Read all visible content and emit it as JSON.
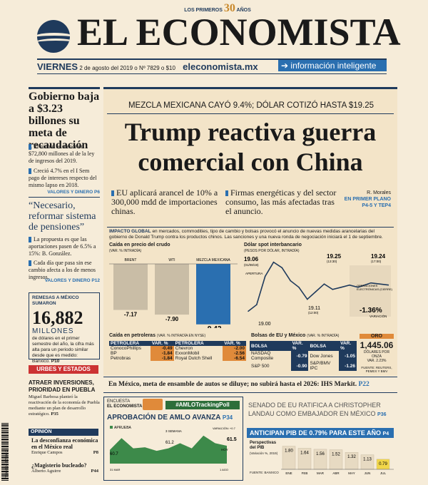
{
  "masthead": {
    "anniv_prefix": "LOS PRIMEROS",
    "anniv_num": "30",
    "anniv_suffix": "AÑOS",
    "title": "EL ECONOMISTA",
    "day": "VIERNES",
    "date": "2 de agosto del 2019",
    "issue": "Nº 7829",
    "price": "$10",
    "site": "eleconomista.mx",
    "tagline": "información inteligente"
  },
  "left": {
    "story1": {
      "headline": "Gobierno baja a $3.23 billones su meta de recaudación",
      "bullets": [
        "El monto es menor en $72,800 millones al de la ley de ingresos del 2019.",
        "Creció 4.7% en el I Sem pago de intereses respecto del mismo lapso en 2018."
      ],
      "section": "VALORES Y DINERO P6"
    },
    "story2": {
      "headline": "“Necesario, reformar sistema de pensiones”",
      "bullets": [
        "La propuesta es que las aportaciones pasen de 6.5% a 15%: B. González.",
        "Cada día que pasa sin ese cambio afecta a los de menos ingresos."
      ],
      "section": "VALORES Y DINERO P12"
    },
    "remesas": {
      "label": "REMESAS A MÉXICO SUMARON",
      "value": "16,882",
      "unit": "MILLONES",
      "text": "de dólares en el primer semestre del año, la cifra más alta para un periodo similar desde que es medido: Banxico.",
      "page": "P10"
    },
    "urbes": "URBES Y ESTADOS",
    "atraer": {
      "headline": "ATRAER INVERSIONES, PRIORIDAD EN PUEBLA",
      "text": "Miguel Barbosa planteó la reactivación de la economía de Puebla mediante un plan de desarrollo estratégico.",
      "page": "P35"
    },
    "opinion": {
      "label": "OPINIÓN",
      "item1": "La desconfianza económica en el México real",
      "author1": "Enrique Campos",
      "page1": "P8",
      "item2": "¿Magisterio bucleado?",
      "author2": "Alberto Aguirre",
      "page2": "P44"
    }
  },
  "main": {
    "kicker": "MEZCLA MEXICANA CAYÓ 9.4%; DÓLAR COTIZÓ HASTA $19.25",
    "headline1": "Trump reactiva guerra",
    "headline2": "comercial con China",
    "deck1": "EU aplicará arancel de 10% a 300,000 mdd de importaciones chinas.",
    "deck2": "Firmas energéticas y del sector consumo, las más afectadas tras el anuncio.",
    "byline": "R. Morales",
    "en_primer": "EN PRIMER PLANO",
    "pages": "P4-5 Y TEP4",
    "impacto_label": "IMPACTO GLOBAL",
    "impacto_text": "en mercados, commodities, tipo de cambio y bolsas provocó el anuncio de nuevas medidas arancelarias del gobierno de Donald Trump contra los productos chinos. Las sanciones y una nueva ronda de negociación iniciará el 1 de septiembre."
  },
  "crude": {
    "title": "Caída en precio del crudo",
    "sub": "(VAR. % INTRADÍA)",
    "labels": [
      "BRENT",
      "WTI",
      "MEZCLA MEXICANA"
    ],
    "values": [
      -7.17,
      -7.9,
      -9.42
    ],
    "value_labels": [
      "-7.17",
      "-7.90",
      "-9.42"
    ]
  },
  "peso": {
    "title": "Dólar spot interbancario",
    "sub": "(PESOS POR DÓLAR, INTRADÍA)",
    "points": [
      {
        "x": "18:00 (31/07/19) APERTURA",
        "y": 19.0
      },
      {
        "x": "19:06 (01/08/19)",
        "y": 19.06
      },
      {
        "x": "",
        "y": 19.32
      },
      {
        "x": "",
        "y": 19.45
      },
      {
        "x": "",
        "y": 19.4
      },
      {
        "x": "",
        "y": 19.28
      },
      {
        "x": "",
        "y": 19.22
      },
      {
        "x": "12:00",
        "y": 19.11
      },
      {
        "x": "",
        "y": 19.18
      },
      {
        "x": "13:30",
        "y": 19.25
      },
      {
        "x": "",
        "y": 19.2
      },
      {
        "x": "",
        "y": 19.22
      },
      {
        "x": "17:00",
        "y": 19.24
      }
    ],
    "label_open": "19.00",
    "label_open_time": "(31/07/19) APERTURA",
    "label_19_06": "19.06",
    "label_19_06_time": "(01/08/19)",
    "label_19_11": "19.11",
    "label_19_11_time": "(12:00)",
    "label_19_25": "19.25",
    "label_19_25_time": "(13:30)",
    "label_19_24": "19.24",
    "label_19_24_time": "(17:00)",
    "label_aper": "APERTURA",
    "label_ops": "OPERACIONES ELECTRÓNICAS (CIERRE)",
    "variation": "-1.36%",
    "variation_label": "VARIACIÓN"
  },
  "petroleras": {
    "title": "Caída en petroleras",
    "sub": "(VAR. % INTRADÍA EN NYSE)",
    "headers": [
      "PETROLERA",
      "VAR. %",
      "PETROLERA",
      "VAR. %"
    ],
    "rows": [
      [
        "ConocoPhillips",
        "-0.49",
        "Chevron",
        "-2.00"
      ],
      [
        "BP",
        "-1.84",
        "ExxonMobil",
        "-2.56"
      ],
      [
        "Petrobras",
        "-1.84",
        "Royal Dutch Shell",
        "-6.54"
      ]
    ]
  },
  "bolsas": {
    "title": "Bolsas de EU y México",
    "sub": "(VAR. % INTRADÍA)",
    "headers": [
      "BOLSA",
      "VAR. %",
      "BOLSA",
      "VAR. %"
    ],
    "rows": [
      [
        "NASDAQ Composite",
        "-0.79",
        "Dow Jones",
        "-1.05"
      ],
      [
        "S&P 500",
        "-0.90",
        "S&P/BMV IPC",
        "-1.26"
      ]
    ]
  },
  "oro": {
    "label": "ORO",
    "value": "1,445.06",
    "unit": "DÓLARES POR ONZA",
    "var": "VAR. 2.23%",
    "source": "FUENTE: REUTERS, PEMEX Y BMV"
  },
  "autos": {
    "text": "En México, meta de ensamble de autos se diluye; no subirá hasta el 2026: IHS Markit.",
    "page": "P22"
  },
  "amlo": {
    "encuesta": "ENCUESTA",
    "brand": "EL ECONOMISTA",
    "hashtag": "#AMLOTrackingPoll",
    "title": "APROBACIÓN DE AMLO AVANZA",
    "page": "P34",
    "legend": "APRUEBA",
    "points": [
      {
        "x": 0,
        "y": 60.7
      },
      {
        "x": 1,
        "y": 63
      },
      {
        "x": 2,
        "y": 61
      },
      {
        "x": 3,
        "y": 61.2
      },
      {
        "x": 4,
        "y": 60.5
      },
      {
        "x": 5,
        "y": 61
      },
      {
        "x": 6,
        "y": 62
      },
      {
        "x": 7,
        "y": 61
      },
      {
        "x": 8,
        "y": 63.5
      },
      {
        "x": 9,
        "y": 62
      },
      {
        "x": 10,
        "y": 61.5
      }
    ],
    "label_start": "60.7",
    "label_mid": "61.2",
    "label_sem": "3 SEMANA",
    "label_end": "61.5",
    "label_var": "VARIACIÓN: +0.7",
    "label_hoy": "HOY",
    "label_x_start": "31 MAR",
    "label_x_end": "1 AGO"
  },
  "landau": {
    "text": "SENADO DE EU RATIFICA A CHRISTOPHER LANDAU COMO EMBAJADOR EN MÉXICO",
    "page": "P36"
  },
  "pib": {
    "title": "ANTICIPAN PIB DE 0.79% PARA ESTE AÑO",
    "page": "P4",
    "sub": "Perspectivas del PIB",
    "sub2": "(Variación %, 2019)",
    "months": [
      "ENE",
      "FEB",
      "MAR",
      "ABR",
      "MAY",
      "JUN",
      "JUL"
    ],
    "values": [
      1.8,
      1.64,
      1.56,
      1.52,
      1.32,
      1.13,
      0.79
    ],
    "value_labels": [
      "1.80",
      "1.64",
      "1.56",
      "1.52",
      "1.32",
      "1.13",
      "0.79"
    ],
    "source": "FUENTE: BANXICO"
  },
  "barcode": "7 50986 0 85503 2"
}
